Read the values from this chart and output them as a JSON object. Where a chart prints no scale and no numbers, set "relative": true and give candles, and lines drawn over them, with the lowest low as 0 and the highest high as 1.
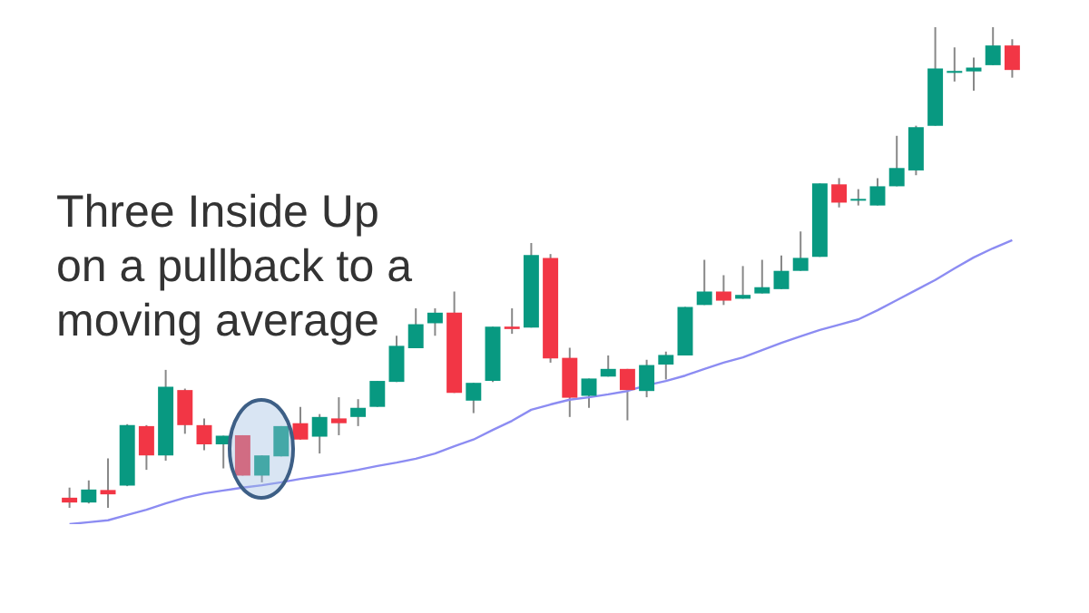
{
  "chart_data": {
    "type": "candlestick",
    "title": "Three Inside Up on a pullback to a moving average",
    "relative": true,
    "grid": false,
    "legend": false,
    "categories": [
      null,
      null,
      null,
      null,
      null,
      null,
      null,
      null,
      null,
      null,
      null,
      null,
      null,
      null,
      null,
      null,
      null,
      null,
      null,
      null,
      null,
      null,
      null,
      null,
      null,
      null,
      null,
      null,
      null,
      null,
      null,
      null,
      null,
      null,
      null,
      null,
      null,
      null,
      null,
      null,
      null,
      null,
      null,
      null,
      null,
      null,
      null,
      null,
      null,
      null
    ],
    "ohlc": [
      [
        0.021,
        0.042,
        0,
        0.011
      ],
      [
        0.011,
        0.057,
        0.009,
        0.038
      ],
      [
        0.037,
        0.103,
        0,
        0.028
      ],
      [
        0.046,
        0.174,
        0.045,
        0.172
      ],
      [
        0.17,
        0.172,
        0.079,
        0.109
      ],
      [
        0.109,
        0.287,
        0.098,
        0.252
      ],
      [
        0.245,
        0.248,
        0.154,
        0.172
      ],
      [
        0.172,
        0.186,
        0.12,
        0.132
      ],
      [
        0.132,
        0.15,
        0.082,
        0.15
      ],
      [
        0.151,
        0.151,
        0.067,
        0.067
      ],
      [
        0.067,
        0.109,
        0.053,
        0.109
      ],
      [
        0.107,
        0.17,
        0.107,
        0.17
      ],
      [
        0.176,
        0.21,
        0.142,
        0.142
      ],
      [
        0.148,
        0.195,
        0.113,
        0.189
      ],
      [
        0.186,
        0.23,
        0.151,
        0.176
      ],
      [
        0.189,
        0.226,
        0.17,
        0.208
      ],
      [
        0.21,
        0.264,
        0.21,
        0.264
      ],
      [
        0.262,
        0.358,
        0.262,
        0.337
      ],
      [
        0.332,
        0.415,
        0.332,
        0.382
      ],
      [
        0.384,
        0.415,
        0.358,
        0.406
      ],
      [
        0.406,
        0.45,
        0.239,
        0.239
      ],
      [
        0.223,
        0.26,
        0.197,
        0.26
      ],
      [
        0.264,
        0.377,
        0.262,
        0.377
      ],
      [
        0.377,
        0.415,
        0.362,
        0.372
      ],
      [
        0.375,
        0.551,
        0.375,
        0.526
      ],
      [
        0.52,
        0.528,
        0.302,
        0.311
      ],
      [
        0.312,
        0.333,
        0.189,
        0.229
      ],
      [
        0.233,
        0.269,
        0.208,
        0.269
      ],
      [
        0.273,
        0.317,
        0.273,
        0.289
      ],
      [
        0.289,
        0.289,
        0.182,
        0.245
      ],
      [
        0.243,
        0.308,
        0.23,
        0.297
      ],
      [
        0.298,
        0.325,
        0.267,
        0.318
      ],
      [
        0.317,
        0.418,
        0.317,
        0.418
      ],
      [
        0.422,
        0.516,
        0.422,
        0.45
      ],
      [
        0.45,
        0.484,
        0.422,
        0.431
      ],
      [
        0.435,
        0.503,
        0.435,
        0.443
      ],
      [
        0.446,
        0.516,
        0.446,
        0.459
      ],
      [
        0.455,
        0.525,
        0.455,
        0.493
      ],
      [
        0.493,
        0.575,
        0.493,
        0.52
      ],
      [
        0.522,
        0.675,
        0.522,
        0.675
      ],
      [
        0.673,
        0.686,
        0.625,
        0.635
      ],
      [
        0.639,
        0.663,
        0.629,
        0.642
      ],
      [
        0.629,
        0.686,
        0.629,
        0.669
      ],
      [
        0.669,
        0.774,
        0.669,
        0.707
      ],
      [
        0.702,
        0.795,
        0.692,
        0.792
      ],
      [
        0.795,
        1.0,
        0.795,
        0.914
      ],
      [
        0.905,
        0.958,
        0.887,
        0.909
      ],
      [
        0.908,
        0.937,
        0.868,
        0.916
      ],
      [
        0.921,
        1.0,
        0.921,
        0.962
      ],
      [
        0.962,
        0.975,
        0.895,
        0.911
      ]
    ],
    "colors": [
      "#f23645",
      "#089981",
      "#f23645",
      "#089981",
      "#f23645",
      "#089981",
      "#f23645",
      "#f23645",
      "#089981",
      "#f23645",
      "#089981",
      "#089981",
      "#f23645",
      "#089981",
      "#f23645",
      "#089981",
      "#089981",
      "#089981",
      "#089981",
      "#089981",
      "#f23645",
      "#089981",
      "#089981",
      "#f23645",
      "#089981",
      "#f23645",
      "#f23645",
      "#089981",
      "#089981",
      "#f23645",
      "#089981",
      "#089981",
      "#089981",
      "#089981",
      "#f23645",
      "#089981",
      "#089981",
      "#089981",
      "#089981",
      "#089981",
      "#f23645",
      "#089981",
      "#089981",
      "#089981",
      "#089981",
      "#089981",
      "#089981",
      "#089981",
      "#089981",
      "#f23645"
    ],
    "series": [
      {
        "type": "line",
        "color": "#8c8cf2",
        "values": [
          -0.034,
          -0.03,
          -0.026,
          -0.015,
          -0.004,
          0.009,
          0.021,
          0.03,
          0.036,
          0.042,
          0.047,
          0.053,
          0.06,
          0.066,
          0.072,
          0.079,
          0.087,
          0.094,
          0.102,
          0.113,
          0.128,
          0.142,
          0.162,
          0.181,
          0.204,
          0.215,
          0.225,
          0.23,
          0.236,
          0.243,
          0.255,
          0.264,
          0.275,
          0.289,
          0.302,
          0.313,
          0.328,
          0.343,
          0.357,
          0.37,
          0.381,
          0.392,
          0.411,
          0.432,
          0.453,
          0.474,
          0.498,
          0.521,
          0.54,
          0.557
        ]
      }
    ]
  }
}
